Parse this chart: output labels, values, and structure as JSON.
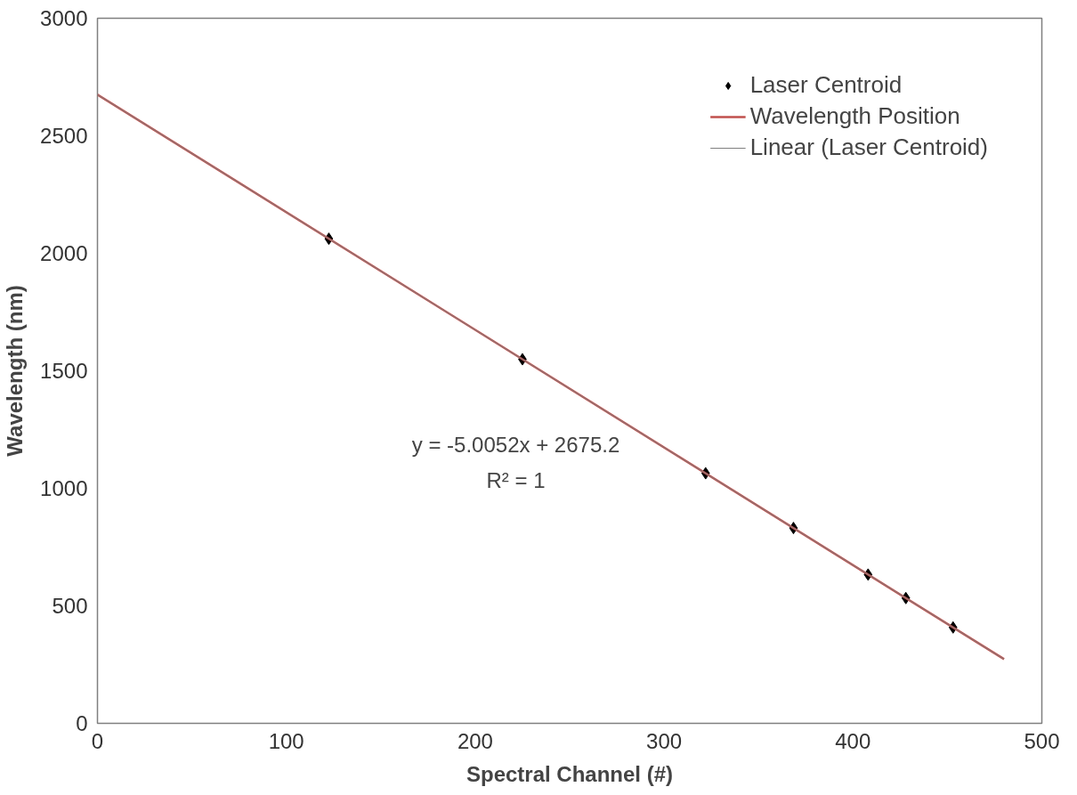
{
  "chart_data": {
    "type": "scatter",
    "xlabel": "Spectral Channel (#)",
    "ylabel": "Wavelength (nm)",
    "xlim": [
      0,
      500
    ],
    "xticks": [
      0,
      100,
      200,
      300,
      400,
      500
    ],
    "ylim": [
      0,
      3000
    ],
    "yticks": [
      0,
      500,
      1000,
      1500,
      2000,
      2500,
      3000
    ],
    "grid": false,
    "legend": "top right",
    "series": [
      {
        "name": "Laser Centroid",
        "marker": "diamond",
        "color": "#000000",
        "x": [
          122.5,
          225,
          322,
          368.5,
          408,
          428,
          453
        ],
        "values": [
          2062,
          1549,
          1064,
          831,
          633,
          533,
          408
        ]
      },
      {
        "name": "Wavelength Position",
        "type": "line",
        "color": "#c0504d",
        "x": [
          0,
          480
        ],
        "values": [
          2675,
          273
        ]
      },
      {
        "name": "Linear (Laser Centroid)",
        "type": "line",
        "color": "#808080",
        "x": [
          0,
          480
        ],
        "values": [
          2675,
          273
        ]
      }
    ],
    "annotations": [
      "y = -5.0052x + 2675.2",
      "R² = 1"
    ]
  }
}
